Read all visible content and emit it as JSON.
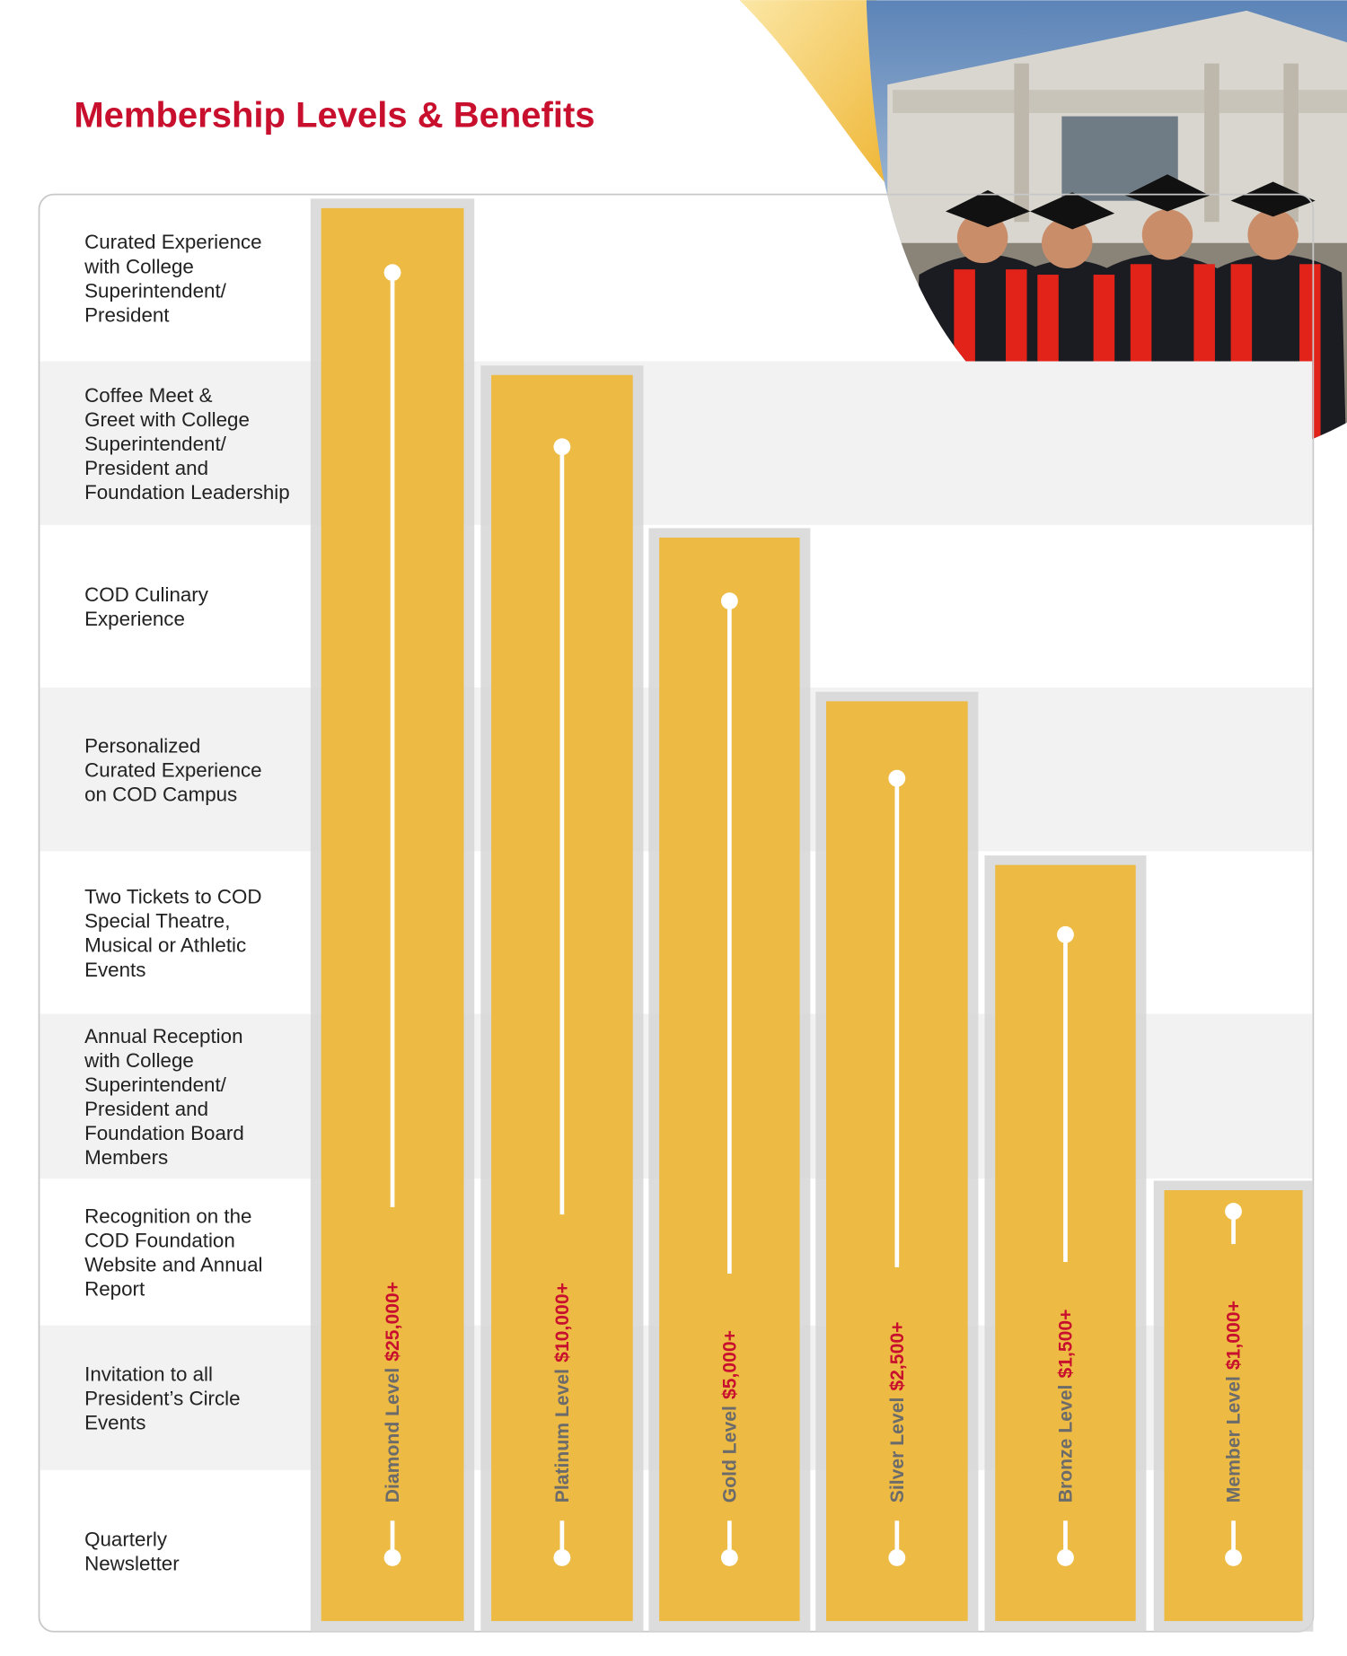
{
  "header": {
    "title": "Membership Levels & Benefits"
  },
  "benefits": [
    {
      "lines": [
        "Curated Experience",
        "with College",
        "Superintendent/",
        "President"
      ]
    },
    {
      "lines": [
        "Coffee Meet &",
        "Greet with College",
        "Superintendent/",
        "President and",
        "Foundation Leadership"
      ]
    },
    {
      "lines": [
        "COD Culinary",
        "Experience"
      ]
    },
    {
      "lines": [
        "Personalized",
        "Curated Experience",
        "on COD Campus"
      ]
    },
    {
      "lines": [
        "Two Tickets to COD",
        "Special Theatre,",
        "Musical or Athletic",
        "Events"
      ]
    },
    {
      "lines": [
        "Annual Reception",
        "with College",
        "Superintendent/",
        "President and",
        "Foundation Board",
        "Members"
      ]
    },
    {
      "lines": [
        "Recognition on the",
        "COD Foundation",
        "Website and Annual",
        "Report"
      ]
    },
    {
      "lines": [
        "Invitation to all",
        "President’s Circle",
        "Events"
      ]
    },
    {
      "lines": [
        "Quarterly",
        "Newsletter"
      ]
    }
  ],
  "levels": [
    {
      "name": "Diamond Level",
      "amount": "$25,000+"
    },
    {
      "name": "Platinum Level",
      "amount": "$10,000+"
    },
    {
      "name": "Gold Level",
      "amount": "$5,000+"
    },
    {
      "name": "Silver Level",
      "amount": "$2,500+"
    },
    {
      "name": "Bronze Level",
      "amount": "$1,500+"
    },
    {
      "name": "Member Level",
      "amount": "$1,000+"
    }
  ]
}
